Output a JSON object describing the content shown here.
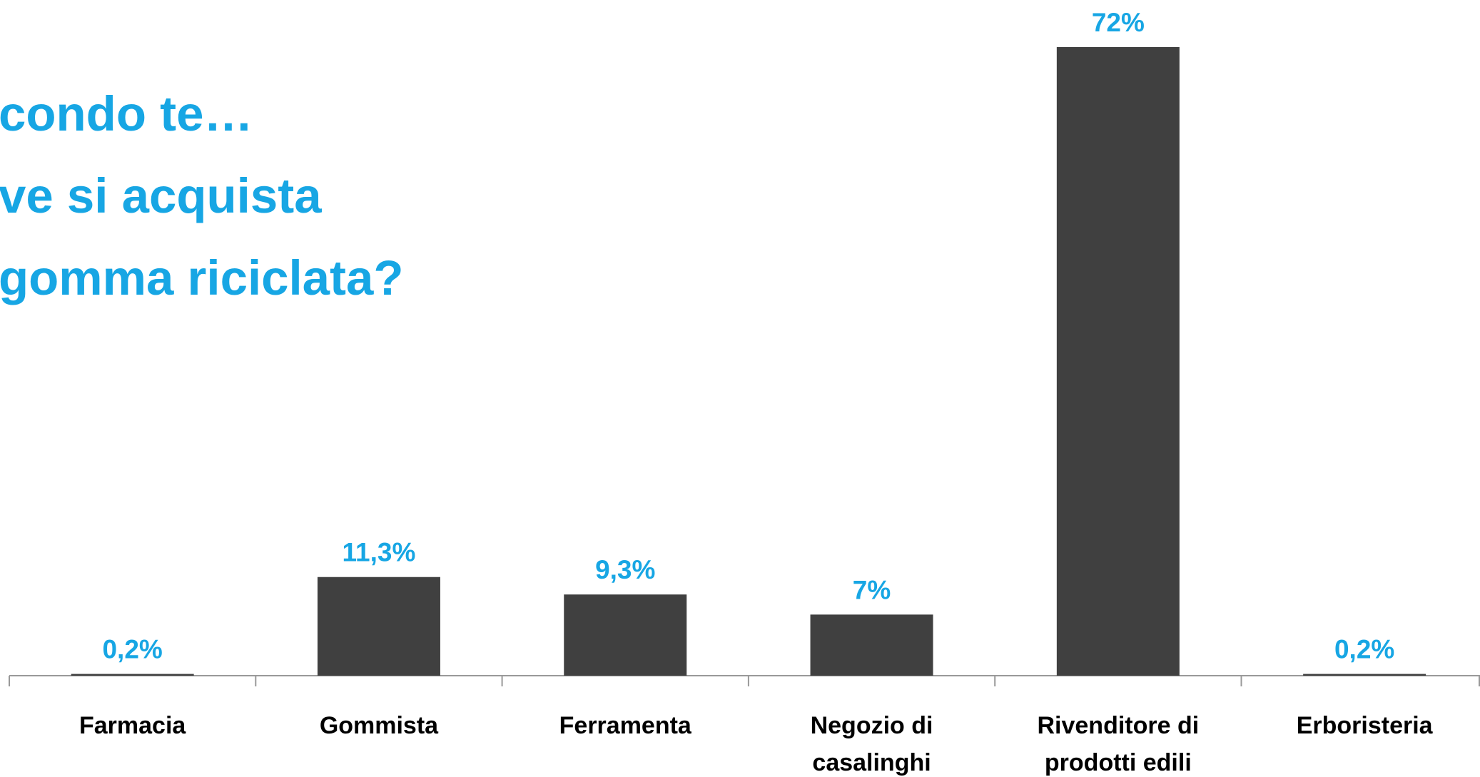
{
  "chart_data": {
    "type": "bar",
    "title": [
      "condo te…",
      "ve si acquista",
      "gomma riciclata?"
    ],
    "categories": [
      [
        "Farmacia"
      ],
      [
        "Gommista"
      ],
      [
        "Ferramenta"
      ],
      [
        "Negozio di",
        "casalinghi"
      ],
      [
        "Rivenditore di",
        "prodotti edili"
      ],
      [
        "Erboristeria"
      ]
    ],
    "values": [
      0.2,
      11.3,
      9.3,
      7,
      72,
      0.2
    ],
    "value_labels": [
      "0,2%",
      "11,3%",
      "9,3%",
      "7%",
      "72%",
      "0,2%"
    ],
    "color": "#404040",
    "label_color": "#17a6e4"
  }
}
